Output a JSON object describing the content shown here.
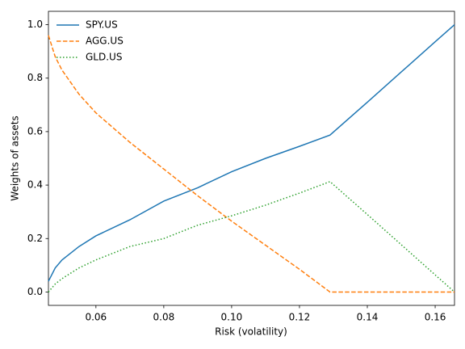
{
  "chart_data": {
    "type": "line",
    "x_label": "Risk (volatility)",
    "y_label": "Weights of assets",
    "x": [
      0.046,
      0.048,
      0.05,
      0.055,
      0.06,
      0.07,
      0.08,
      0.09,
      0.1,
      0.11,
      0.12,
      0.129,
      0.14,
      0.15,
      0.16,
      0.1657
    ],
    "series": [
      {
        "name": "SPY.US",
        "color": "#1f77b4",
        "style": "solid",
        "values": [
          0.04,
          0.09,
          0.12,
          0.17,
          0.21,
          0.27,
          0.34,
          0.39,
          0.45,
          0.5,
          0.545,
          0.587,
          0.71,
          0.823,
          0.936,
          1.0
        ]
      },
      {
        "name": "AGG.US",
        "color": "#ff7f0e",
        "style": "dashed",
        "values": [
          0.96,
          0.88,
          0.83,
          0.74,
          0.67,
          0.56,
          0.46,
          0.36,
          0.265,
          0.175,
          0.085,
          0.0,
          0.0,
          0.0,
          0.0,
          0.0
        ]
      },
      {
        "name": "GLD.US",
        "color": "#2ca02c",
        "style": "dotted",
        "values": [
          0.0,
          0.03,
          0.05,
          0.09,
          0.12,
          0.17,
          0.2,
          0.25,
          0.285,
          0.325,
          0.37,
          0.413,
          0.29,
          0.177,
          0.064,
          0.0
        ]
      }
    ],
    "xlim": [
      0.046,
      0.1657
    ],
    "ylim": [
      -0.05,
      1.05
    ],
    "xticks": [
      0.06,
      0.08,
      {
        "value": 0.1,
        "label": "0.10"
      },
      0.12,
      0.14,
      0.16
    ],
    "yticks": [
      {
        "value": 0,
        "label": "0.0"
      },
      0.2,
      0.4,
      0.6,
      0.8,
      {
        "value": 1,
        "label": "1.0"
      }
    ],
    "legend": "upper left"
  }
}
